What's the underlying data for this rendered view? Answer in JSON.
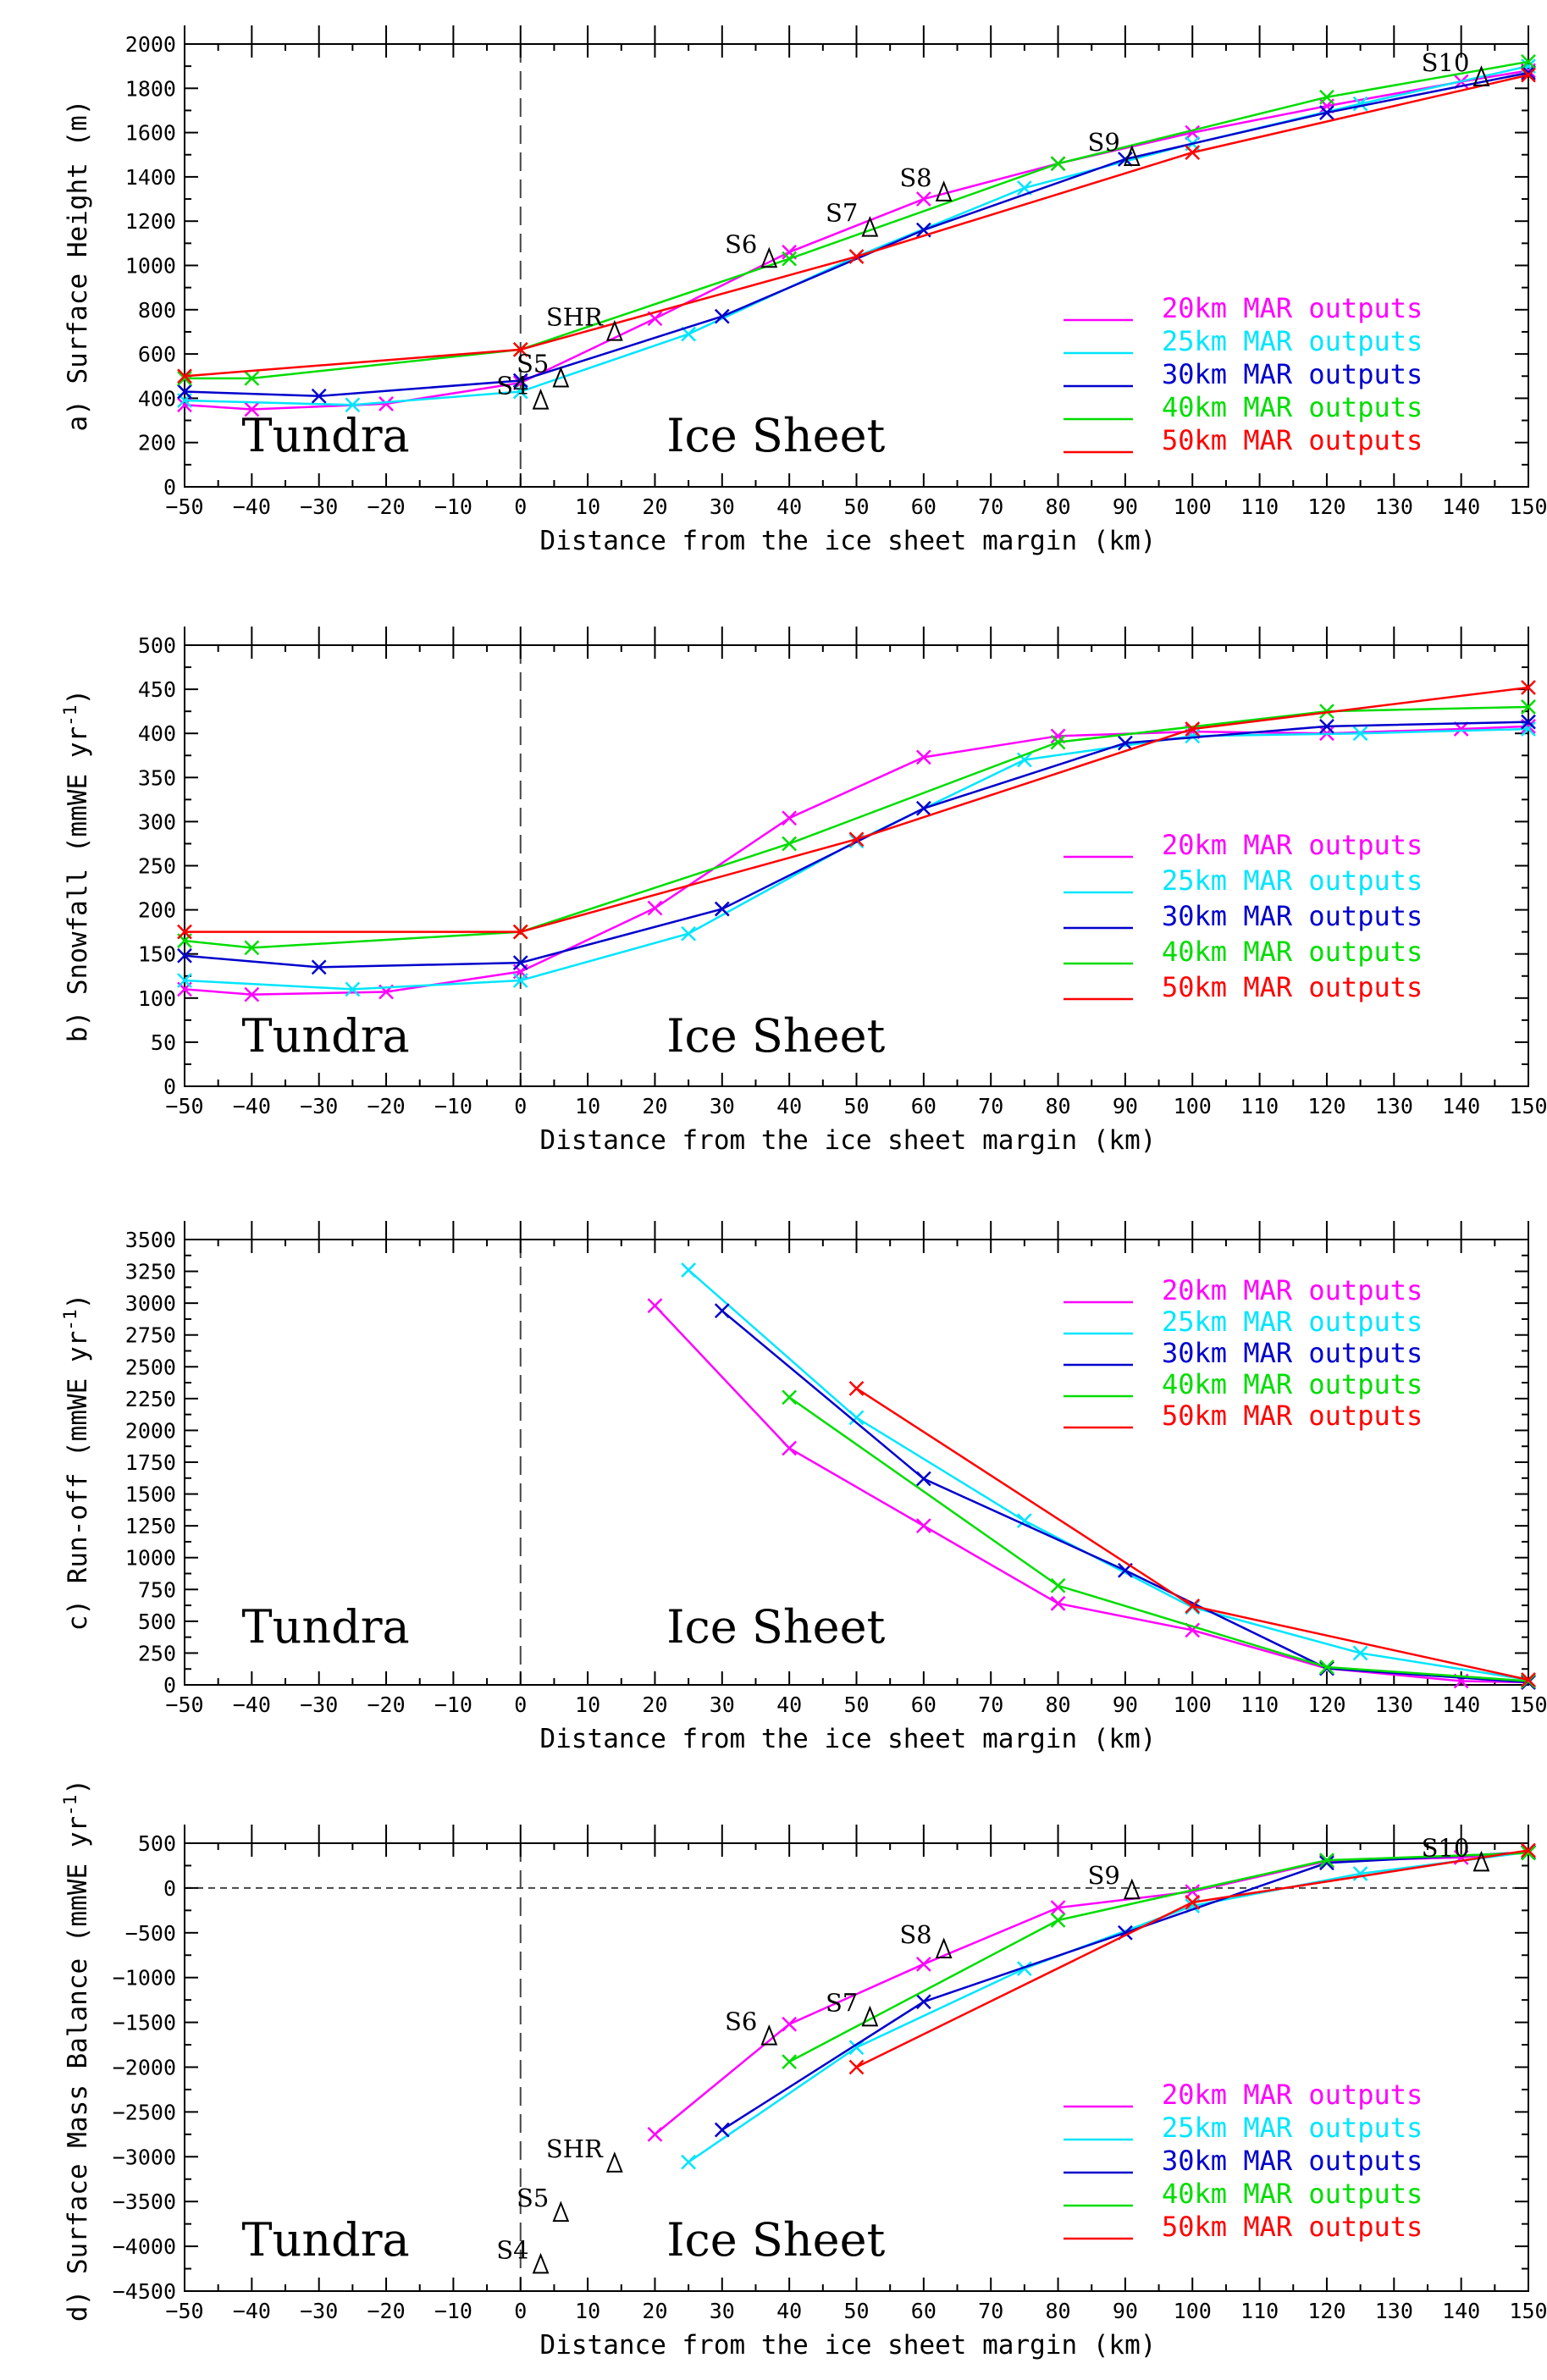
{
  "chart_data": [
    {
      "type": "line",
      "panel": "a",
      "ylabel": "a) Surface Height (m)",
      "xlabel": "Distance from the ice sheet margin (km)",
      "xlim": [
        -50,
        150
      ],
      "ylim": [
        0,
        2000
      ],
      "xticks": [
        -50,
        -40,
        -30,
        -20,
        -10,
        0,
        10,
        20,
        30,
        40,
        50,
        60,
        70,
        80,
        90,
        100,
        110,
        120,
        130,
        140,
        150
      ],
      "yticks": [
        0,
        200,
        400,
        600,
        800,
        1000,
        1200,
        1400,
        1600,
        1800,
        2000
      ],
      "grid": false,
      "legend_position": "right",
      "regions": [
        "Tundra",
        "Ice Sheet"
      ],
      "series": [
        {
          "name": "20km MAR outputs",
          "color": "#ff00ff",
          "x": [
            -50,
            -40,
            -20,
            0,
            20,
            40,
            60,
            80,
            100,
            120,
            140,
            150
          ],
          "y": [
            370,
            350,
            375,
            470,
            760,
            1060,
            1300,
            1460,
            1600,
            1720,
            1830,
            1880
          ]
        },
        {
          "name": "25km MAR outputs",
          "color": "#00e5ff",
          "x": [
            -50,
            -25,
            0,
            25,
            50,
            75,
            100,
            125,
            150
          ],
          "y": [
            390,
            370,
            430,
            690,
            1040,
            1350,
            1550,
            1730,
            1900
          ]
        },
        {
          "name": "30km MAR outputs",
          "color": "#0000cc",
          "x": [
            -50,
            -30,
            0,
            30,
            60,
            90,
            120,
            150
          ],
          "y": [
            430,
            410,
            480,
            770,
            1160,
            1480,
            1690,
            1870
          ]
        },
        {
          "name": "40km MAR outputs",
          "color": "#00dd00",
          "x": [
            -50,
            -40,
            0,
            40,
            80,
            120,
            150
          ],
          "y": [
            490,
            490,
            620,
            1030,
            1460,
            1760,
            1920
          ]
        },
        {
          "name": "50km MAR outputs",
          "color": "#ff0000",
          "x": [
            -50,
            0,
            50,
            100,
            150
          ],
          "y": [
            500,
            620,
            1040,
            1510,
            1860
          ]
        }
      ],
      "stations": [
        {
          "name": "S4",
          "x": 3,
          "y": 380
        },
        {
          "name": "S5",
          "x": 6,
          "y": 480
        },
        {
          "name": "SHR",
          "x": 14,
          "y": 690
        },
        {
          "name": "S6",
          "x": 37,
          "y": 1020
        },
        {
          "name": "S7",
          "x": 52,
          "y": 1160
        },
        {
          "name": "S8",
          "x": 63,
          "y": 1320
        },
        {
          "name": "S9",
          "x": 91,
          "y": 1480
        },
        {
          "name": "S10",
          "x": 143,
          "y": 1840
        }
      ]
    },
    {
      "type": "line",
      "panel": "b",
      "ylabel": "b) Snowfall (mmWE yr-1)",
      "ylabel_main": "b) Snowfall (mmWE yr",
      "ylabel_sup": "-1",
      "ylabel_end": ")",
      "xlabel": "Distance from the ice sheet margin (km)",
      "xlim": [
        -50,
        150
      ],
      "ylim": [
        0,
        500
      ],
      "xticks": [
        -50,
        -40,
        -30,
        -20,
        -10,
        0,
        10,
        20,
        30,
        40,
        50,
        60,
        70,
        80,
        90,
        100,
        110,
        120,
        130,
        140,
        150
      ],
      "yticks": [
        0,
        50,
        100,
        150,
        200,
        250,
        300,
        350,
        400,
        450,
        500
      ],
      "grid": false,
      "legend_position": "right",
      "regions": [
        "Tundra",
        "Ice Sheet"
      ],
      "series": [
        {
          "name": "20km MAR outputs",
          "color": "#ff00ff",
          "x": [
            -50,
            -40,
            -20,
            0,
            20,
            40,
            60,
            80,
            100,
            120,
            140,
            150
          ],
          "y": [
            110,
            104,
            107,
            130,
            202,
            304,
            373,
            397,
            402,
            400,
            405,
            408
          ]
        },
        {
          "name": "25km MAR outputs",
          "color": "#00e5ff",
          "x": [
            -50,
            -25,
            0,
            25,
            50,
            75,
            100,
            125,
            150
          ],
          "y": [
            120,
            110,
            120,
            173,
            278,
            370,
            397,
            400,
            405
          ]
        },
        {
          "name": "30km MAR outputs",
          "color": "#0000cc",
          "x": [
            -50,
            -30,
            0,
            30,
            60,
            90,
            120,
            150
          ],
          "y": [
            148,
            135,
            140,
            201,
            315,
            389,
            408,
            413
          ]
        },
        {
          "name": "40km MAR outputs",
          "color": "#00dd00",
          "x": [
            -50,
            -40,
            0,
            40,
            80,
            120,
            150
          ],
          "y": [
            165,
            157,
            175,
            275,
            390,
            425,
            430
          ]
        },
        {
          "name": "50km MAR outputs",
          "color": "#ff0000",
          "x": [
            -50,
            0,
            50,
            100,
            150
          ],
          "y": [
            175,
            175,
            280,
            405,
            452
          ]
        }
      ]
    },
    {
      "type": "line",
      "panel": "c",
      "ylabel": "c) Run-off (mmWE yr-1)",
      "ylabel_main": "c) Run-off (mmWE yr",
      "ylabel_sup": "-1",
      "ylabel_end": ")",
      "xlabel": "Distance from the ice sheet margin (km)",
      "xlim": [
        -50,
        150
      ],
      "ylim": [
        0,
        3500
      ],
      "xticks": [
        -50,
        -40,
        -30,
        -20,
        -10,
        0,
        10,
        20,
        30,
        40,
        50,
        60,
        70,
        80,
        90,
        100,
        110,
        120,
        130,
        140,
        150
      ],
      "yticks": [
        0,
        250,
        500,
        750,
        1000,
        1250,
        1500,
        1750,
        2000,
        2250,
        2500,
        2750,
        3000,
        3250,
        3500
      ],
      "grid": false,
      "legend_position": "top-right",
      "regions": [
        "Tundra",
        "Ice Sheet"
      ],
      "series": [
        {
          "name": "20km MAR outputs",
          "color": "#ff00ff",
          "x": [
            20,
            40,
            60,
            80,
            100,
            120,
            140,
            150
          ],
          "y": [
            2980,
            1860,
            1250,
            640,
            430,
            130,
            30,
            20
          ]
        },
        {
          "name": "25km MAR outputs",
          "color": "#00e5ff",
          "x": [
            25,
            50,
            75,
            100,
            125,
            150
          ],
          "y": [
            3260,
            2100,
            1290,
            610,
            250,
            40
          ]
        },
        {
          "name": "30km MAR outputs",
          "color": "#0000cc",
          "x": [
            30,
            60,
            90,
            120,
            150
          ],
          "y": [
            2940,
            1620,
            900,
            130,
            20
          ]
        },
        {
          "name": "40km MAR outputs",
          "color": "#00dd00",
          "x": [
            40,
            80,
            120,
            150
          ],
          "y": [
            2260,
            780,
            140,
            30
          ]
        },
        {
          "name": "50km MAR outputs",
          "color": "#ff0000",
          "x": [
            50,
            100,
            150
          ],
          "y": [
            2330,
            620,
            40
          ]
        }
      ]
    },
    {
      "type": "line",
      "panel": "d",
      "ylabel": "d) Surface Mass Balance (mmWE yr-1)",
      "ylabel_main": "d) Surface Mass Balance (mmWE yr",
      "ylabel_sup": "-1",
      "ylabel_end": ")",
      "xlabel": "Distance from the ice sheet margin (km)",
      "xlim": [
        -50,
        150
      ],
      "ylim": [
        -4500,
        500
      ],
      "xticks": [
        -50,
        -40,
        -30,
        -20,
        -10,
        0,
        10,
        20,
        30,
        40,
        50,
        60,
        70,
        80,
        90,
        100,
        110,
        120,
        130,
        140,
        150
      ],
      "yticks": [
        -4500,
        -4000,
        -3500,
        -3000,
        -2500,
        -2000,
        -1500,
        -1000,
        -500,
        0,
        500
      ],
      "grid": false,
      "zero_line": true,
      "legend_position": "bottom-right",
      "regions": [
        "Tundra",
        "Ice Sheet"
      ],
      "series": [
        {
          "name": "20km MAR outputs",
          "color": "#ff00ff",
          "x": [
            20,
            40,
            60,
            80,
            100,
            120,
            140,
            150
          ],
          "y": [
            -2750,
            -1520,
            -850,
            -220,
            -40,
            300,
            340,
            400
          ]
        },
        {
          "name": "25km MAR outputs",
          "color": "#00e5ff",
          "x": [
            25,
            50,
            75,
            100,
            125,
            150
          ],
          "y": [
            -3060,
            -1780,
            -900,
            -200,
            160,
            400
          ]
        },
        {
          "name": "30km MAR outputs",
          "color": "#0000cc",
          "x": [
            30,
            60,
            90,
            120,
            150
          ],
          "y": [
            -2700,
            -1270,
            -500,
            280,
            400
          ]
        },
        {
          "name": "40km MAR outputs",
          "color": "#00dd00",
          "x": [
            40,
            80,
            120,
            150
          ],
          "y": [
            -1940,
            -360,
            310,
            390
          ]
        },
        {
          "name": "50km MAR outputs",
          "color": "#ff0000",
          "x": [
            50,
            100,
            150
          ],
          "y": [
            -2000,
            -160,
            420
          ]
        }
      ],
      "stations": [
        {
          "name": "S4",
          "x": 3,
          "y": -4230
        },
        {
          "name": "S5",
          "x": 6,
          "y": -3650
        },
        {
          "name": "SHR",
          "x": 14,
          "y": -3100
        },
        {
          "name": "S6",
          "x": 37,
          "y": -1680
        },
        {
          "name": "S7",
          "x": 52,
          "y": -1470
        },
        {
          "name": "S8",
          "x": 63,
          "y": -710
        },
        {
          "name": "S9",
          "x": 91,
          "y": -50
        },
        {
          "name": "S10",
          "x": 143,
          "y": 260
        }
      ]
    }
  ]
}
